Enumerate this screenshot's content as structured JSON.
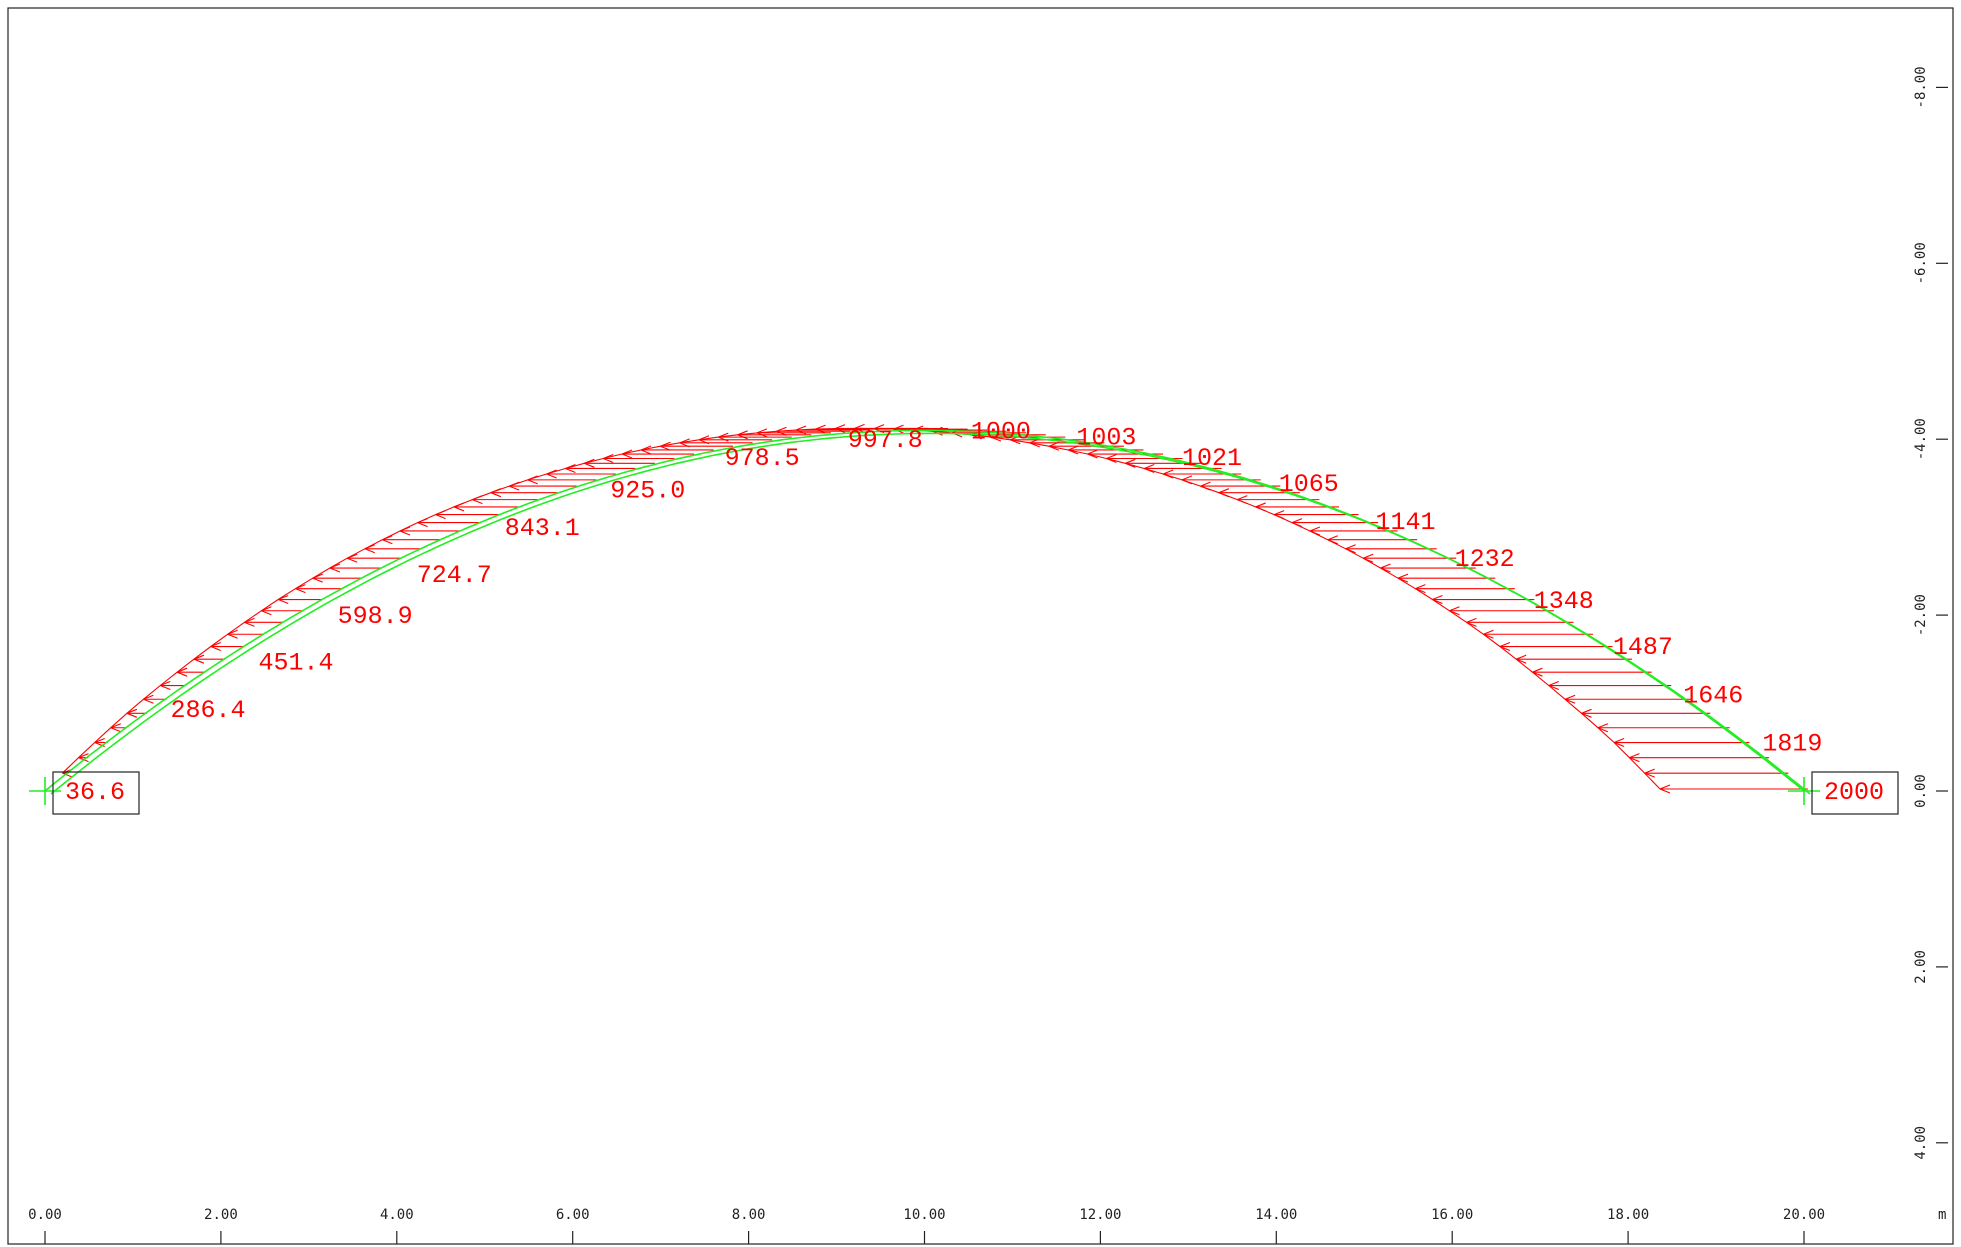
{
  "chart_data": {
    "type": "diagram",
    "x_unit": "m",
    "x_axis_ticks": [
      "0.00",
      "2.00",
      "4.00",
      "6.00",
      "8.00",
      "10.00",
      "12.00",
      "14.00",
      "16.00",
      "18.00",
      "20.00"
    ],
    "y_axis_ticks": [
      "-8.00",
      "-6.00",
      "-4.00",
      "-2.00",
      "0.00",
      "2.00",
      "4.00"
    ],
    "arch": {
      "span": 20.0,
      "rise": 4.1
    },
    "values": [
      {
        "x": 0.0,
        "y": 0.0,
        "label": "36.6"
      },
      {
        "x": 1.2,
        "y": -0.93,
        "label": "286.4"
      },
      {
        "x": 2.2,
        "y": -1.47,
        "label": "451.4"
      },
      {
        "x": 3.1,
        "y": -2.0,
        "label": "598.9"
      },
      {
        "x": 4.0,
        "y": -2.47,
        "label": "724.7"
      },
      {
        "x": 5.0,
        "y": -3.0,
        "label": "843.1"
      },
      {
        "x": 6.2,
        "y": -3.43,
        "label": "925.0"
      },
      {
        "x": 7.5,
        "y": -3.8,
        "label": "978.5"
      },
      {
        "x": 8.9,
        "y": -4.0,
        "label": "997.8"
      },
      {
        "x": 10.3,
        "y": -4.1,
        "label": "1000"
      },
      {
        "x": 11.5,
        "y": -4.03,
        "label": "1003"
      },
      {
        "x": 12.7,
        "y": -3.8,
        "label": "1021"
      },
      {
        "x": 13.8,
        "y": -3.5,
        "label": "1065"
      },
      {
        "x": 14.9,
        "y": -3.07,
        "label": "1141"
      },
      {
        "x": 15.8,
        "y": -2.65,
        "label": "1232"
      },
      {
        "x": 16.7,
        "y": -2.17,
        "label": "1348"
      },
      {
        "x": 17.6,
        "y": -1.65,
        "label": "1487"
      },
      {
        "x": 18.4,
        "y": -1.1,
        "label": "1646"
      },
      {
        "x": 19.3,
        "y": -0.55,
        "label": "1819"
      },
      {
        "x": 20.0,
        "y": 0.0,
        "label": "2000"
      }
    ],
    "boxed_labels": [
      "36.6",
      "2000"
    ],
    "colors": {
      "structure": "#22ee22",
      "diagram": "#ff0000",
      "frame": "#222222"
    }
  }
}
